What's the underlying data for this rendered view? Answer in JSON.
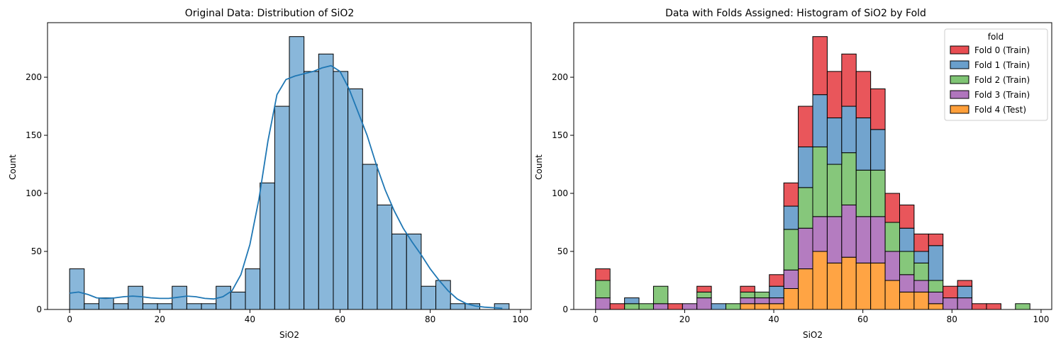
{
  "chart_data": [
    {
      "type": "bar",
      "title": "Original Data: Distribution of SiO2",
      "xlabel": "SiO2",
      "ylabel": "Count",
      "xlim": [
        -4.9,
        102.4
      ],
      "ylim": [
        0,
        247
      ],
      "xticks": [
        0,
        20,
        40,
        60,
        80,
        100
      ],
      "yticks": [
        0,
        50,
        100,
        150,
        200
      ],
      "bin_edges": [
        0,
        3.25,
        6.5,
        9.75,
        13,
        16.25,
        19.5,
        22.75,
        26,
        29.25,
        32.5,
        35.75,
        39,
        42.25,
        45.5,
        48.75,
        52,
        55.25,
        58.5,
        61.75,
        65,
        68.25,
        71.5,
        74.75,
        78,
        81.25,
        84.5,
        87.75,
        91,
        94.25,
        97.5
      ],
      "values": [
        35,
        5,
        10,
        5,
        20,
        5,
        5,
        20,
        5,
        5,
        20,
        15,
        35,
        109,
        175,
        235,
        205,
        220,
        205,
        190,
        125,
        90,
        65,
        65,
        20,
        25,
        5,
        5,
        0,
        5
      ],
      "bar_color": "#89b7da",
      "kde_color": "#1f77b4",
      "kde": [
        [
          0,
          14
        ],
        [
          2,
          15
        ],
        [
          4,
          13
        ],
        [
          6,
          10
        ],
        [
          8,
          9.5
        ],
        [
          10,
          10
        ],
        [
          12,
          11
        ],
        [
          14,
          11.5
        ],
        [
          16,
          11
        ],
        [
          18,
          10
        ],
        [
          20,
          9.5
        ],
        [
          22,
          9.5
        ],
        [
          24,
          10.5
        ],
        [
          26,
          11.5
        ],
        [
          28,
          11
        ],
        [
          30,
          9.5
        ],
        [
          32,
          9
        ],
        [
          34,
          11
        ],
        [
          36,
          16
        ],
        [
          38,
          30
        ],
        [
          40,
          56
        ],
        [
          42,
          95
        ],
        [
          44,
          145
        ],
        [
          46,
          185
        ],
        [
          48,
          198
        ],
        [
          50,
          201
        ],
        [
          52,
          203
        ],
        [
          54,
          205
        ],
        [
          56,
          208
        ],
        [
          58,
          210
        ],
        [
          60,
          205
        ],
        [
          62,
          190
        ],
        [
          64,
          170
        ],
        [
          66,
          150
        ],
        [
          68,
          125
        ],
        [
          70,
          103
        ],
        [
          72,
          85
        ],
        [
          74,
          70
        ],
        [
          76,
          58
        ],
        [
          78,
          47
        ],
        [
          80,
          35
        ],
        [
          82,
          25
        ],
        [
          84,
          16
        ],
        [
          86,
          9
        ],
        [
          88,
          5
        ],
        [
          90,
          3
        ],
        [
          92,
          2
        ],
        [
          94,
          1.5
        ],
        [
          96,
          1
        ]
      ]
    },
    {
      "type": "bar",
      "stacked": true,
      "title": "Data with Folds Assigned: Histogram of SiO2 by Fold",
      "xlabel": "SiO2",
      "ylabel": "Count",
      "xlim": [
        -4.9,
        102.4
      ],
      "ylim": [
        0,
        247
      ],
      "xticks": [
        0,
        20,
        40,
        60,
        80,
        100
      ],
      "yticks": [
        0,
        50,
        100,
        150,
        200
      ],
      "legend_title": "fold",
      "legend_position": "top-right",
      "bin_edges": [
        0,
        3.25,
        6.5,
        9.75,
        13,
        16.25,
        19.5,
        22.75,
        26,
        29.25,
        32.5,
        35.75,
        39,
        42.25,
        45.5,
        48.75,
        52,
        55.25,
        58.5,
        61.75,
        65,
        68.25,
        71.5,
        74.75,
        78,
        81.25,
        84.5,
        87.75,
        91,
        94.25,
        97.5
      ],
      "series": [
        {
          "name": "Fold 4 (Test)",
          "color": "#ff9f3a",
          "values": [
            0,
            0,
            0,
            0,
            0,
            0,
            0,
            0,
            0,
            0,
            5,
            5,
            5,
            18,
            35,
            50,
            40,
            45,
            40,
            40,
            25,
            15,
            15,
            5,
            0,
            0,
            0,
            0,
            0,
            0
          ]
        },
        {
          "name": "Fold 3 (Train)",
          "color": "#b075bd",
          "values": [
            10,
            0,
            0,
            0,
            5,
            0,
            5,
            10,
            0,
            0,
            5,
            5,
            5,
            16,
            35,
            30,
            40,
            45,
            40,
            40,
            25,
            15,
            10,
            10,
            10,
            10,
            0,
            0,
            0,
            0
          ]
        },
        {
          "name": "Fold 2 (Train)",
          "color": "#7fc474",
          "values": [
            15,
            0,
            5,
            5,
            15,
            0,
            0,
            5,
            0,
            5,
            5,
            5,
            0,
            35,
            35,
            60,
            45,
            45,
            40,
            40,
            25,
            20,
            15,
            10,
            0,
            0,
            0,
            0,
            0,
            5
          ]
        },
        {
          "name": "Fold 1 (Train)",
          "color": "#6a9fcb",
          "values": [
            0,
            0,
            5,
            0,
            0,
            0,
            0,
            0,
            5,
            0,
            0,
            0,
            10,
            20,
            35,
            45,
            40,
            40,
            45,
            35,
            0,
            20,
            10,
            30,
            0,
            10,
            0,
            0,
            0,
            0
          ]
        },
        {
          "name": "Fold 0 (Train)",
          "color": "#e84d52",
          "values": [
            10,
            5,
            0,
            0,
            0,
            5,
            0,
            5,
            0,
            0,
            5,
            0,
            10,
            20,
            35,
            50,
            40,
            45,
            40,
            35,
            25,
            20,
            15,
            10,
            10,
            5,
            5,
            5,
            0,
            0
          ]
        }
      ]
    }
  ]
}
